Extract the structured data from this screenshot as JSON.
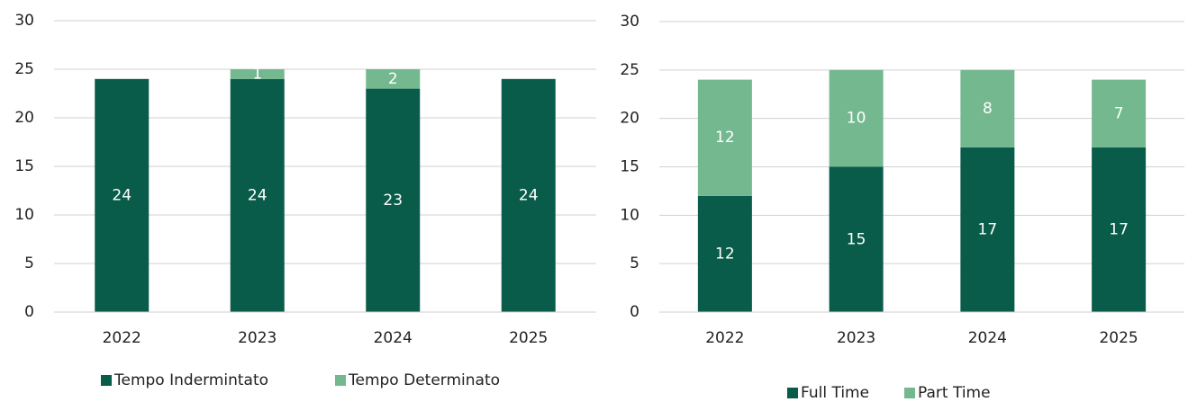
{
  "chart_data": [
    {
      "type": "stacked_bar",
      "categories": [
        "2022",
        "2023",
        "2024",
        "2025"
      ],
      "series": [
        {
          "name": "Tempo Indermintato",
          "color": "#0a5c4a",
          "values": [
            24,
            24,
            23,
            24
          ]
        },
        {
          "name": "Tempo Determinato",
          "color": "#74b890",
          "values": [
            null,
            1,
            2,
            null
          ]
        }
      ],
      "ylim": [
        0,
        30
      ],
      "yticks": [
        0,
        5,
        10,
        15,
        20,
        25,
        30
      ],
      "grid": true,
      "legend": "bottom"
    },
    {
      "type": "stacked_bar",
      "categories": [
        "2022",
        "2023",
        "2024",
        "2025"
      ],
      "series": [
        {
          "name": "Full Time",
          "color": "#0a5c4a",
          "values": [
            12,
            15,
            17,
            17
          ]
        },
        {
          "name": "Part Time",
          "color": "#74b890",
          "values": [
            12,
            10,
            8,
            7
          ]
        }
      ],
      "ylim": [
        0,
        30
      ],
      "yticks": [
        0,
        5,
        10,
        15,
        20,
        25,
        30
      ],
      "grid": true,
      "legend": "bottom"
    }
  ]
}
